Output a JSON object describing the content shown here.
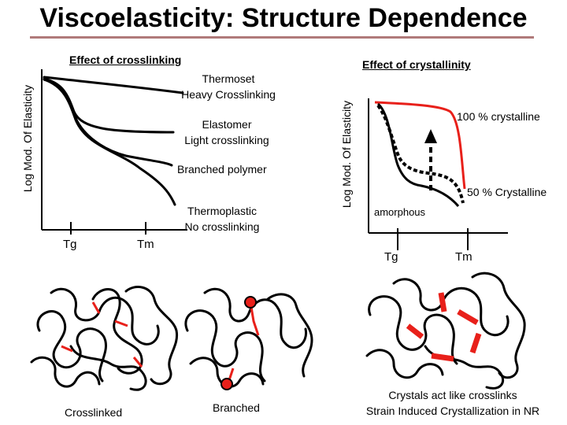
{
  "title": "Viscoelasticity: Structure Dependence",
  "left_panel": {
    "heading": "Effect of crosslinking",
    "y_axis_label": "Log Mod. Of Elasticity",
    "curves": [
      {
        "line1": "Thermoset",
        "line2": "Heavy Crosslinking"
      },
      {
        "line1": "Elastomer",
        "line2": "Light crosslinking"
      },
      {
        "line1": "Branched polymer",
        "line2": ""
      },
      {
        "line1": "Thermoplastic",
        "line2": "No crosslinking"
      }
    ],
    "x_ticks": [
      "Tg",
      "Tm"
    ]
  },
  "right_panel": {
    "heading": "Effect of crystallinity",
    "y_axis_label": "Log Mod. Of Elasticity",
    "curve_labels": {
      "crystalline_100": "100 % crystalline",
      "crystalline_50": "50 % Crystalline",
      "amorphous": "amorphous"
    },
    "x_ticks": [
      "Tg",
      "Tm"
    ]
  },
  "captions": {
    "crosslinked": "Crosslinked",
    "branched": "Branched",
    "crystals_line1": "Crystals act like crosslinks",
    "crystals_line2": "Strain Induced Crystallization in NR"
  },
  "colors": {
    "curve": "#000000",
    "highlight": "#e8201a",
    "title_rule": "#b07a7a"
  }
}
